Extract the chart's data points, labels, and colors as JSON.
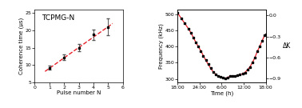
{
  "left": {
    "title": "TCPMG-N",
    "xlabel": "Pulse number N",
    "ylabel": "Coherence time (μs)",
    "xlim": [
      0,
      6
    ],
    "ylim": [
      5,
      26
    ],
    "yticks": [
      5,
      10,
      15,
      20,
      25
    ],
    "xticks": [
      0,
      1,
      2,
      3,
      4,
      5,
      6
    ],
    "x": [
      1,
      2,
      3,
      4,
      5
    ],
    "y": [
      9.2,
      12.2,
      15.0,
      18.8,
      21.0
    ],
    "yerr": [
      0.5,
      0.8,
      1.0,
      1.5,
      2.5
    ],
    "fit_x": [
      0.7,
      5.3
    ],
    "fit_y": [
      8.1,
      22.0
    ],
    "line_color": "#e8202a",
    "marker_color": "black",
    "errorbar_color": "#555555"
  },
  "right": {
    "xlabel": "Time (h)",
    "ylabel_left": "Frequency (kHz)",
    "ylabel_right": "ΔK",
    "xtick_labels": [
      "18:00",
      "24:00",
      "6:00",
      "12:00",
      "18:00"
    ],
    "ylim_left": [
      290,
      515
    ],
    "ylim_right": [
      -0.95,
      0.08
    ],
    "yticks_left": [
      300,
      350,
      400,
      450,
      500
    ],
    "yticks_right": [
      0,
      -0.3,
      -0.6,
      -0.9
    ],
    "time": [
      0.0,
      0.042,
      0.083,
      0.125,
      0.152,
      0.18,
      0.208,
      0.236,
      0.264,
      0.292,
      0.32,
      0.347,
      0.375,
      0.403,
      0.43,
      0.458,
      0.486,
      0.514,
      0.542,
      0.57,
      0.597,
      0.625,
      0.653,
      0.68,
      0.708,
      0.736,
      0.764,
      0.792,
      0.82,
      0.847,
      0.875,
      0.903,
      0.93,
      0.958,
      0.986,
      1.0
    ],
    "freq": [
      505,
      488,
      472,
      455,
      443,
      428,
      413,
      400,
      387,
      372,
      358,
      345,
      333,
      322,
      315,
      308,
      306,
      303,
      302,
      305,
      308,
      310,
      308,
      311,
      313,
      316,
      320,
      328,
      337,
      350,
      365,
      385,
      400,
      418,
      435,
      438
    ],
    "line_color": "#e8202a",
    "marker_color": "black"
  }
}
